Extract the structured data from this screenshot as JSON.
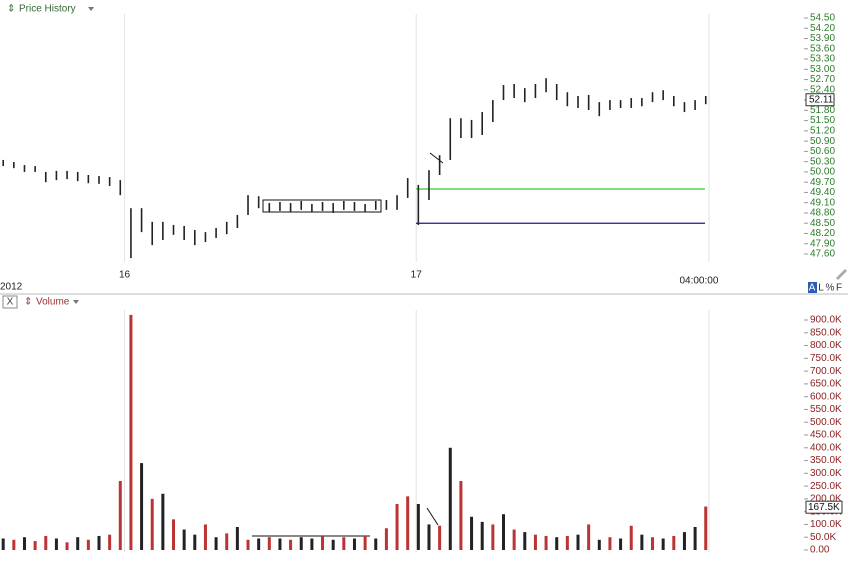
{
  "chart_data": [
    {
      "type": "ohlc",
      "title": "Price History",
      "x_label": "2012",
      "color": "#222222",
      "xlim": [
        -0.3,
        66.4
      ],
      "xticks": [
        {
          "value": 11.4,
          "label": "16"
        },
        {
          "value": 38.8,
          "label": "17"
        },
        {
          "value": 66.3,
          "label": "04:00:00"
        }
      ],
      "ylim": [
        47.6,
        54.5
      ],
      "yticks": [
        {
          "value": 47.6,
          "label": "47.60"
        },
        {
          "value": 47.9,
          "label": "47.90"
        },
        {
          "value": 48.2,
          "label": "48.20"
        },
        {
          "value": 48.5,
          "label": "48.50"
        },
        {
          "value": 48.8,
          "label": "48.80"
        },
        {
          "value": 49.1,
          "label": "49.10"
        },
        {
          "value": 49.4,
          "label": "49.40"
        },
        {
          "value": 49.7,
          "label": "49.70"
        },
        {
          "value": 50,
          "label": "50.00"
        },
        {
          "value": 50.3,
          "label": "50.30"
        },
        {
          "value": 50.6,
          "label": "50.60"
        },
        {
          "value": 50.9,
          "label": "50.90"
        },
        {
          "value": 51.2,
          "label": "51.20"
        },
        {
          "value": 51.5,
          "label": "51.50"
        },
        {
          "value": 51.8,
          "label": "51.80"
        },
        {
          "value": 52.1,
          "label": "52.10"
        },
        {
          "value": 52.4,
          "label": "52.40"
        },
        {
          "value": 52.7,
          "label": "52.70"
        },
        {
          "value": 53,
          "label": "53.00"
        },
        {
          "value": 53.3,
          "label": "53.30"
        },
        {
          "value": 53.6,
          "label": "53.60"
        },
        {
          "value": 53.9,
          "label": "53.90"
        },
        {
          "value": 54.2,
          "label": "54.20"
        },
        {
          "value": 54.5,
          "label": "54.50"
        }
      ],
      "high": [
        50.35,
        50.29,
        50.2,
        50.17,
        50.0,
        50.03,
        50.03,
        50.0,
        49.91,
        49.88,
        49.85,
        49.76,
        48.94,
        48.94,
        48.54,
        48.54,
        48.45,
        48.42,
        48.3,
        48.24,
        48.36,
        48.54,
        48.74,
        49.32,
        49.29,
        49.09,
        49.12,
        49.09,
        49.15,
        49.06,
        49.12,
        49.09,
        49.15,
        49.12,
        49.06,
        49.15,
        49.18,
        49.32,
        49.82,
        49.62,
        50.05,
        50.49,
        51.57,
        51.57,
        51.52,
        51.75,
        52.1,
        52.54,
        52.57,
        52.45,
        52.57,
        52.74,
        52.57,
        52.33,
        52.22,
        52.25,
        52.04,
        52.1,
        52.1,
        52.16,
        52.16,
        52.33,
        52.39,
        52.22,
        52.04,
        52.1,
        52.22
      ],
      "low": [
        50.17,
        50.11,
        50.0,
        50.0,
        49.7,
        49.76,
        49.79,
        49.73,
        49.67,
        49.65,
        49.59,
        49.32,
        47.48,
        48.24,
        47.86,
        48.01,
        48.16,
        48.01,
        47.86,
        47.95,
        48.07,
        48.18,
        48.36,
        48.74,
        48.94,
        48.83,
        48.86,
        48.83,
        48.89,
        48.83,
        48.86,
        48.8,
        48.89,
        48.86,
        48.83,
        48.89,
        48.89,
        48.89,
        49.24,
        48.45,
        49.18,
        49.91,
        50.35,
        50.99,
        50.99,
        51.08,
        51.46,
        52.1,
        52.16,
        52.04,
        52.16,
        52.33,
        52.1,
        51.92,
        51.87,
        51.81,
        51.63,
        51.81,
        51.87,
        51.87,
        51.92,
        52.04,
        52.1,
        51.92,
        51.75,
        51.81,
        51.98
      ],
      "levels": [
        {
          "value": 49.5,
          "color": "#33cc33"
        },
        {
          "value": 48.5,
          "color": "#1a1a8c"
        }
      ],
      "last_value": 52.11,
      "axis_buttons": [
        "A",
        "L",
        "%",
        "F"
      ]
    },
    {
      "type": "bar",
      "title": "Volume",
      "close_button": "X",
      "ylim": [
        0,
        900000
      ],
      "yticks": [
        {
          "value": 0,
          "label": "0.00"
        },
        {
          "value": 50000,
          "label": "50.0K"
        },
        {
          "value": 100000,
          "label": "100.0K"
        },
        {
          "value": 150000,
          "label": "150.0K"
        },
        {
          "value": 200000,
          "label": "200.0K"
        },
        {
          "value": 250000,
          "label": "250.0K"
        },
        {
          "value": 300000,
          "label": "300.0K"
        },
        {
          "value": 350000,
          "label": "350.0K"
        },
        {
          "value": 400000,
          "label": "400.0K"
        },
        {
          "value": 450000,
          "label": "450.0K"
        },
        {
          "value": 500000,
          "label": "500.0K"
        },
        {
          "value": 550000,
          "label": "550.0K"
        },
        {
          "value": 600000,
          "label": "600.0K"
        },
        {
          "value": 650000,
          "label": "650.0K"
        },
        {
          "value": 700000,
          "label": "700.0K"
        },
        {
          "value": 750000,
          "label": "750.0K"
        },
        {
          "value": 800000,
          "label": "800.0K"
        },
        {
          "value": 850000,
          "label": "850.0K"
        },
        {
          "value": 900000,
          "label": "900.0K"
        }
      ],
      "values": [
        45000,
        40000,
        50000,
        35000,
        55000,
        45000,
        30000,
        50000,
        40000,
        55000,
        60000,
        270000,
        920000,
        340000,
        200000,
        220000,
        120000,
        80000,
        60000,
        100000,
        50000,
        65000,
        90000,
        40000,
        45000,
        50000,
        45000,
        40000,
        50000,
        45000,
        55000,
        40000,
        50000,
        45000,
        55000,
        45000,
        85000,
        180000,
        210000,
        180000,
        100000,
        95000,
        400000,
        270000,
        130000,
        110000,
        100000,
        140000,
        80000,
        70000,
        60000,
        55000,
        50000,
        55000,
        60000,
        100000,
        40000,
        50000,
        45000,
        95000,
        60000,
        50000,
        45000,
        55000,
        70000,
        90000,
        170000
      ],
      "colors": [
        "#222",
        "#b33",
        "#222",
        "#b33",
        "#b33",
        "#222",
        "#b33",
        "#222",
        "#b33",
        "#222",
        "#b33",
        "#b33",
        "#b33",
        "#222",
        "#b33",
        "#222",
        "#b33",
        "#222",
        "#222",
        "#b33",
        "#222",
        "#b33",
        "#222",
        "#b33",
        "#222",
        "#b33",
        "#222",
        "#b33",
        "#222",
        "#222",
        "#b33",
        "#222",
        "#b33",
        "#222",
        "#b33",
        "#222",
        "#b33",
        "#b33",
        "#b33",
        "#222",
        "#222",
        "#b33",
        "#222",
        "#b33",
        "#222",
        "#222",
        "#b33",
        "#222",
        "#b33",
        "#222",
        "#b33",
        "#b33",
        "#222",
        "#b33",
        "#222",
        "#b33",
        "#222",
        "#b33",
        "#222",
        "#b33",
        "#222",
        "#b33",
        "#222",
        "#b33",
        "#222",
        "#222",
        "#b33"
      ],
      "last_value": {
        "value": 167500,
        "label": "167.5K"
      }
    }
  ]
}
